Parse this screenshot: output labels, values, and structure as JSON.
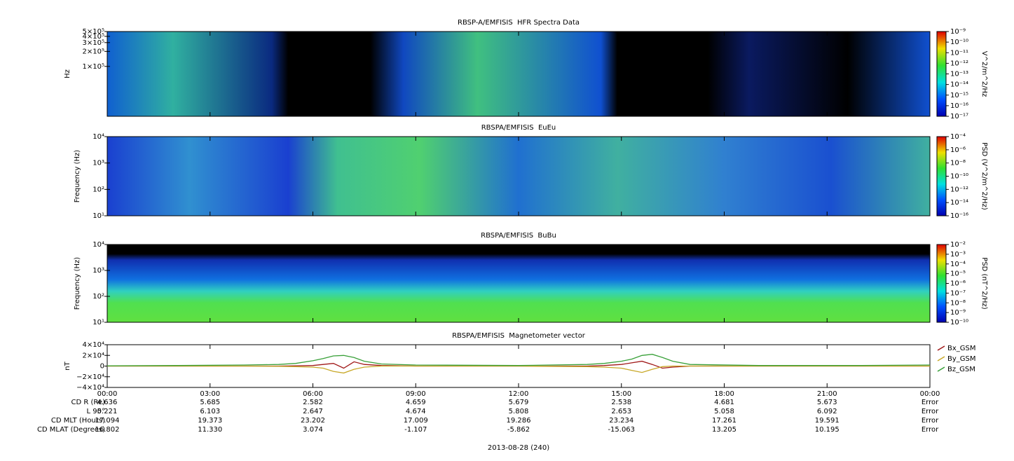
{
  "chart_data": [
    {
      "type": "spectrogram",
      "title": "RBSP-A/EMFISIS  HFR Spectra Data",
      "ylabel": "Hz",
      "log_y": true,
      "ylim": [
        10000,
        500000
      ],
      "yticks": [
        {
          "value": 500000,
          "label": "5×10⁵"
        },
        {
          "value": 400000,
          "label": "4×10⁵"
        },
        {
          "value": 300000,
          "label": "3×10⁵"
        },
        {
          "value": 200000,
          "label": "2×10⁵"
        },
        {
          "value": 100000,
          "label": "1×10⁵"
        }
      ],
      "colorbar": {
        "label": "V^2/m^2/Hz",
        "lim": [
          1e-17,
          1e-09
        ],
        "ticks": [
          {
            "value": 1e-09,
            "label": "10⁻⁹"
          },
          {
            "value": 1e-10,
            "label": "10⁻¹⁰"
          },
          {
            "value": 1e-11,
            "label": "10⁻¹¹"
          },
          {
            "value": 1e-12,
            "label": "10⁻¹²"
          },
          {
            "value": 1e-13,
            "label": "10⁻¹³"
          },
          {
            "value": 1e-14,
            "label": "10⁻¹⁴"
          },
          {
            "value": 1e-15,
            "label": "10⁻¹⁵"
          },
          {
            "value": 1e-16,
            "label": "10⁻¹⁶"
          },
          {
            "value": 1e-17,
            "label": "10⁻¹⁷"
          }
        ]
      }
    },
    {
      "type": "spectrogram",
      "title": "RBSPA/EMFISIS  EuEu",
      "ylabel": "Frequency (Hz)",
      "log_y": true,
      "ylim": [
        10,
        10000
      ],
      "yticks": [
        {
          "value": 10000,
          "label": "10⁴"
        },
        {
          "value": 1000,
          "label": "10³"
        },
        {
          "value": 100,
          "label": "10²"
        },
        {
          "value": 10,
          "label": "10¹"
        }
      ],
      "colorbar": {
        "label": "PSD (V^2/m^2/Hz)",
        "lim": [
          1e-16,
          0.0001
        ],
        "ticks": [
          {
            "value": 0.0001,
            "label": "10⁻⁴"
          },
          {
            "value": 1e-06,
            "label": "10⁻⁶"
          },
          {
            "value": 1e-08,
            "label": "10⁻⁸"
          },
          {
            "value": 1e-10,
            "label": "10⁻¹⁰"
          },
          {
            "value": 1e-12,
            "label": "10⁻¹²"
          },
          {
            "value": 1e-14,
            "label": "10⁻¹⁴"
          },
          {
            "value": 1e-16,
            "label": "10⁻¹⁶"
          }
        ]
      }
    },
    {
      "type": "spectrogram",
      "title": "RBSPA/EMFISIS  BuBu",
      "ylabel": "Frequency (Hz)",
      "log_y": true,
      "ylim": [
        10,
        10000
      ],
      "yticks": [
        {
          "value": 10000,
          "label": "10⁴"
        },
        {
          "value": 1000,
          "label": "10³"
        },
        {
          "value": 100,
          "label": "10²"
        },
        {
          "value": 10,
          "label": "10¹"
        }
      ],
      "colorbar": {
        "label": "PSD (nT^2/Hz)",
        "lim": [
          1e-10,
          0.01
        ],
        "ticks": [
          {
            "value": 0.01,
            "label": "10⁻²"
          },
          {
            "value": 0.001,
            "label": "10⁻³"
          },
          {
            "value": 0.0001,
            "label": "10⁻⁴"
          },
          {
            "value": 1e-05,
            "label": "10⁻⁵"
          },
          {
            "value": 1e-06,
            "label": "10⁻⁶"
          },
          {
            "value": 1e-07,
            "label": "10⁻⁷"
          },
          {
            "value": 1e-08,
            "label": "10⁻⁸"
          },
          {
            "value": 1e-09,
            "label": "10⁻⁹"
          },
          {
            "value": 1e-10,
            "label": "10⁻¹⁰"
          }
        ]
      }
    },
    {
      "type": "line",
      "title": "RBSPA/EMFISIS  Magnetometer vector",
      "ylabel": "nT",
      "xlabel": "2013-08-28 (240)",
      "xlim": [
        0,
        24
      ],
      "xticks": [
        {
          "value": 0,
          "label": "00:00"
        },
        {
          "value": 3,
          "label": "03:00"
        },
        {
          "value": 6,
          "label": "06:00"
        },
        {
          "value": 9,
          "label": "09:00"
        },
        {
          "value": 12,
          "label": "12:00"
        },
        {
          "value": 15,
          "label": "15:00"
        },
        {
          "value": 18,
          "label": "18:00"
        },
        {
          "value": 21,
          "label": "21:00"
        },
        {
          "value": 24,
          "label": "00:00"
        }
      ],
      "ylim": [
        -40000,
        40000
      ],
      "yticks": [
        {
          "value": 40000,
          "label": "4×10⁴"
        },
        {
          "value": 20000,
          "label": "2×10⁴"
        },
        0,
        {
          "value": -20000,
          "label": "−2×10⁴"
        },
        {
          "value": -40000,
          "label": "−4×10⁴"
        }
      ],
      "x": [
        0,
        2,
        4,
        5,
        5.5,
        6,
        6.3,
        6.6,
        6.9,
        7.2,
        7.5,
        8,
        9,
        12,
        14,
        14.5,
        15,
        15.3,
        15.6,
        15.9,
        16.2,
        16.5,
        17,
        19,
        22,
        24
      ],
      "series": [
        {
          "name": "Bx_GSM",
          "color": "#a01818",
          "values": [
            0,
            0,
            0,
            0,
            500,
            1000,
            3000,
            5000,
            -4000,
            8000,
            3000,
            1000,
            0,
            0,
            0,
            1000,
            3000,
            6000,
            9000,
            3000,
            -4000,
            -2000,
            0,
            0,
            0,
            0
          ]
        },
        {
          "name": "By_GSM",
          "color": "#c8a828",
          "values": [
            0,
            0,
            0,
            -500,
            -1000,
            -2000,
            -4000,
            -10000,
            -13000,
            -6000,
            -2000,
            0,
            0,
            0,
            -1000,
            -2000,
            -4000,
            -8000,
            -12000,
            -6000,
            -1000,
            0,
            0,
            0,
            0,
            0
          ]
        },
        {
          "name": "Bz_GSM",
          "color": "#38a038",
          "values": [
            500,
            1000,
            2000,
            3000,
            5000,
            10000,
            14000,
            19000,
            20000,
            16000,
            9000,
            4000,
            2000,
            1000,
            3000,
            5000,
            9000,
            13000,
            20000,
            22000,
            16000,
            9000,
            3000,
            1000,
            1000,
            2000
          ]
        }
      ]
    }
  ],
  "ephemeris": {
    "rows": [
      {
        "label": "CD R (Re)",
        "values": [
          "4.636",
          "5.685",
          "2.582",
          "4.659",
          "5.679",
          "2.538",
          "4.681",
          "5.673",
          "Error"
        ]
      },
      {
        "label": "L 90°",
        "values": [
          "5.221",
          "6.103",
          "2.647",
          "4.674",
          "5.808",
          "2.653",
          "5.058",
          "6.092",
          "Error"
        ]
      },
      {
        "label": "CD MLT (Hours)",
        "values": [
          "17.094",
          "19.373",
          "23.202",
          "17.009",
          "19.286",
          "23.234",
          "17.261",
          "19.591",
          "Error"
        ]
      },
      {
        "label": "CD MLAT (Degrees)",
        "values": [
          "16.802",
          "11.330",
          "3.074",
          "-1.107",
          "-5.862",
          "-15.063",
          "13.205",
          "10.195",
          "Error"
        ]
      }
    ]
  }
}
